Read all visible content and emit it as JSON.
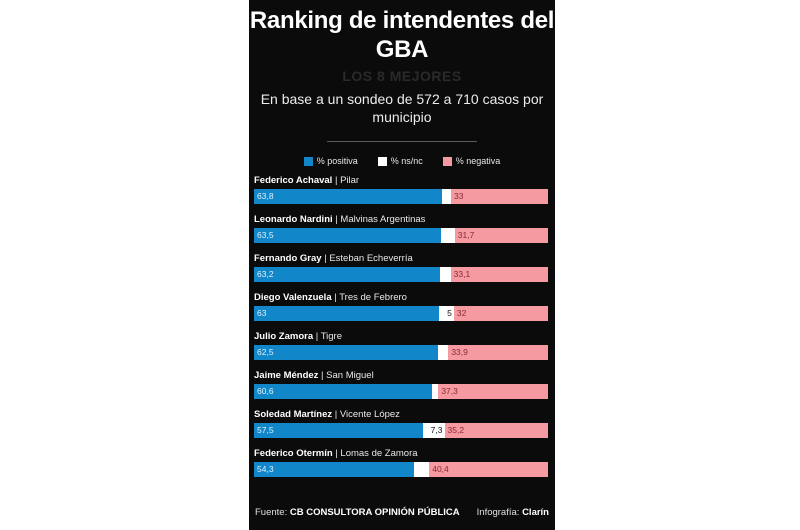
{
  "header": {
    "title": "Ranking de intendentes del GBA",
    "subtitle": "LOS 8 MEJORES",
    "description": "En base a un sondeo de 572 a 710 casos por municipio"
  },
  "legend": [
    {
      "label": "% positiva",
      "color": "#1186c9"
    },
    {
      "label": "% ns/nc",
      "color": "#ffffff"
    },
    {
      "label": "% negativa",
      "color": "#f59aa0"
    }
  ],
  "footer": {
    "source_prefix": "Fuente:",
    "source": "CB CONSULTORA OPINIÓN PÚBLICA",
    "credit_prefix": "Infografía:",
    "credit": "Clarín"
  },
  "chart_data": {
    "type": "bar",
    "orientation": "horizontal",
    "stacked": true,
    "title": "Ranking de intendentes del GBA",
    "subtitle": "LOS 8 MEJORES",
    "legend_position": "top-center",
    "xlim": [
      0,
      100
    ],
    "categories": [
      {
        "name": "Federico Achaval",
        "municipio": "Pilar"
      },
      {
        "name": "Leonardo Nardini",
        "municipio": "Malvinas Argentinas"
      },
      {
        "name": "Fernando Gray",
        "municipio": "Esteban Echeverría"
      },
      {
        "name": "Diego Valenzuela",
        "municipio": "Tres de Febrero"
      },
      {
        "name": "Julio Zamora",
        "municipio": "Tigre"
      },
      {
        "name": "Jaime Méndez",
        "municipio": "San Miguel"
      },
      {
        "name": "Soledad Martínez",
        "municipio": "Vicente López"
      },
      {
        "name": "Federico Otermín",
        "municipio": "Lomas de Zamora"
      }
    ],
    "series": [
      {
        "name": "% positiva",
        "color": "#1186c9",
        "values": [
          63.8,
          63.5,
          63.2,
          63,
          62.5,
          60.6,
          57.5,
          54.3
        ],
        "labels": [
          "63,8",
          "63,5",
          "63,2",
          "63",
          "62,5",
          "60,6",
          "57,5",
          "54,3"
        ]
      },
      {
        "name": "% ns/nc",
        "color": "#ffffff",
        "values": [
          3.2,
          4.8,
          3.7,
          5,
          3.6,
          2.1,
          7.3,
          5.3
        ],
        "labels": [
          "",
          "",
          "",
          "5",
          "",
          "",
          "7,3",
          ""
        ]
      },
      {
        "name": "% negativa",
        "color": "#f59aa0",
        "values": [
          33,
          31.7,
          33.1,
          32,
          33.9,
          37.3,
          35.2,
          40.4
        ],
        "labels": [
          "33",
          "31,7",
          "33,1",
          "32",
          "33,9",
          "37,3",
          "35,2",
          "40,4"
        ]
      }
    ]
  }
}
